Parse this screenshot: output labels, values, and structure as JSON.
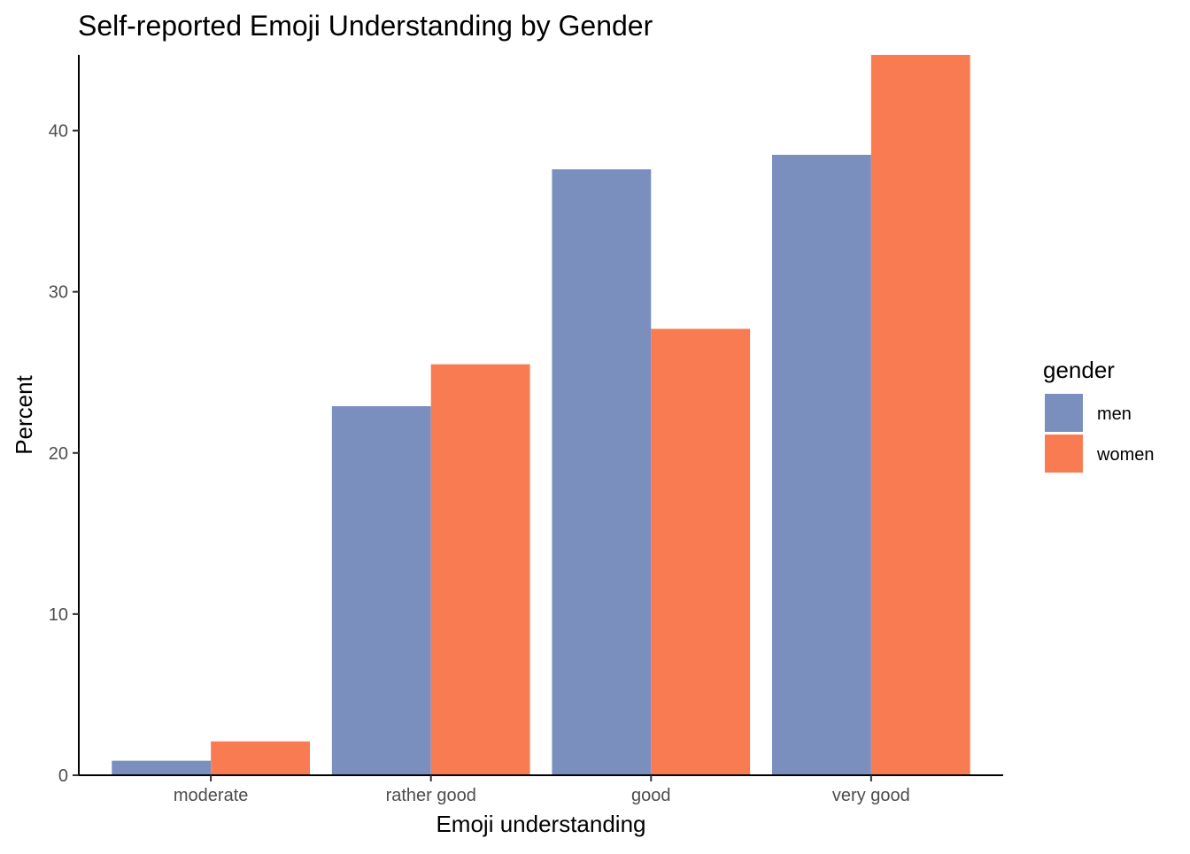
{
  "chart_data": {
    "type": "bar",
    "title": "Self-reported Emoji Understanding by Gender",
    "xlabel": "Emoji understanding",
    "ylabel": "Percent",
    "categories": [
      "moderate",
      "rather good",
      "good",
      "very good"
    ],
    "series": [
      {
        "name": "men",
        "color": "#7b8fbf",
        "values": [
          0.9,
          22.9,
          37.6,
          38.5
        ]
      },
      {
        "name": "women",
        "color": "#f87b52",
        "values": [
          2.1,
          25.5,
          27.7,
          44.7
        ]
      }
    ],
    "ylim": [
      0,
      44.7
    ],
    "yticks": [
      0,
      10,
      20,
      30,
      40
    ],
    "legend": {
      "title": "gender",
      "position": "right"
    },
    "grid": false
  }
}
